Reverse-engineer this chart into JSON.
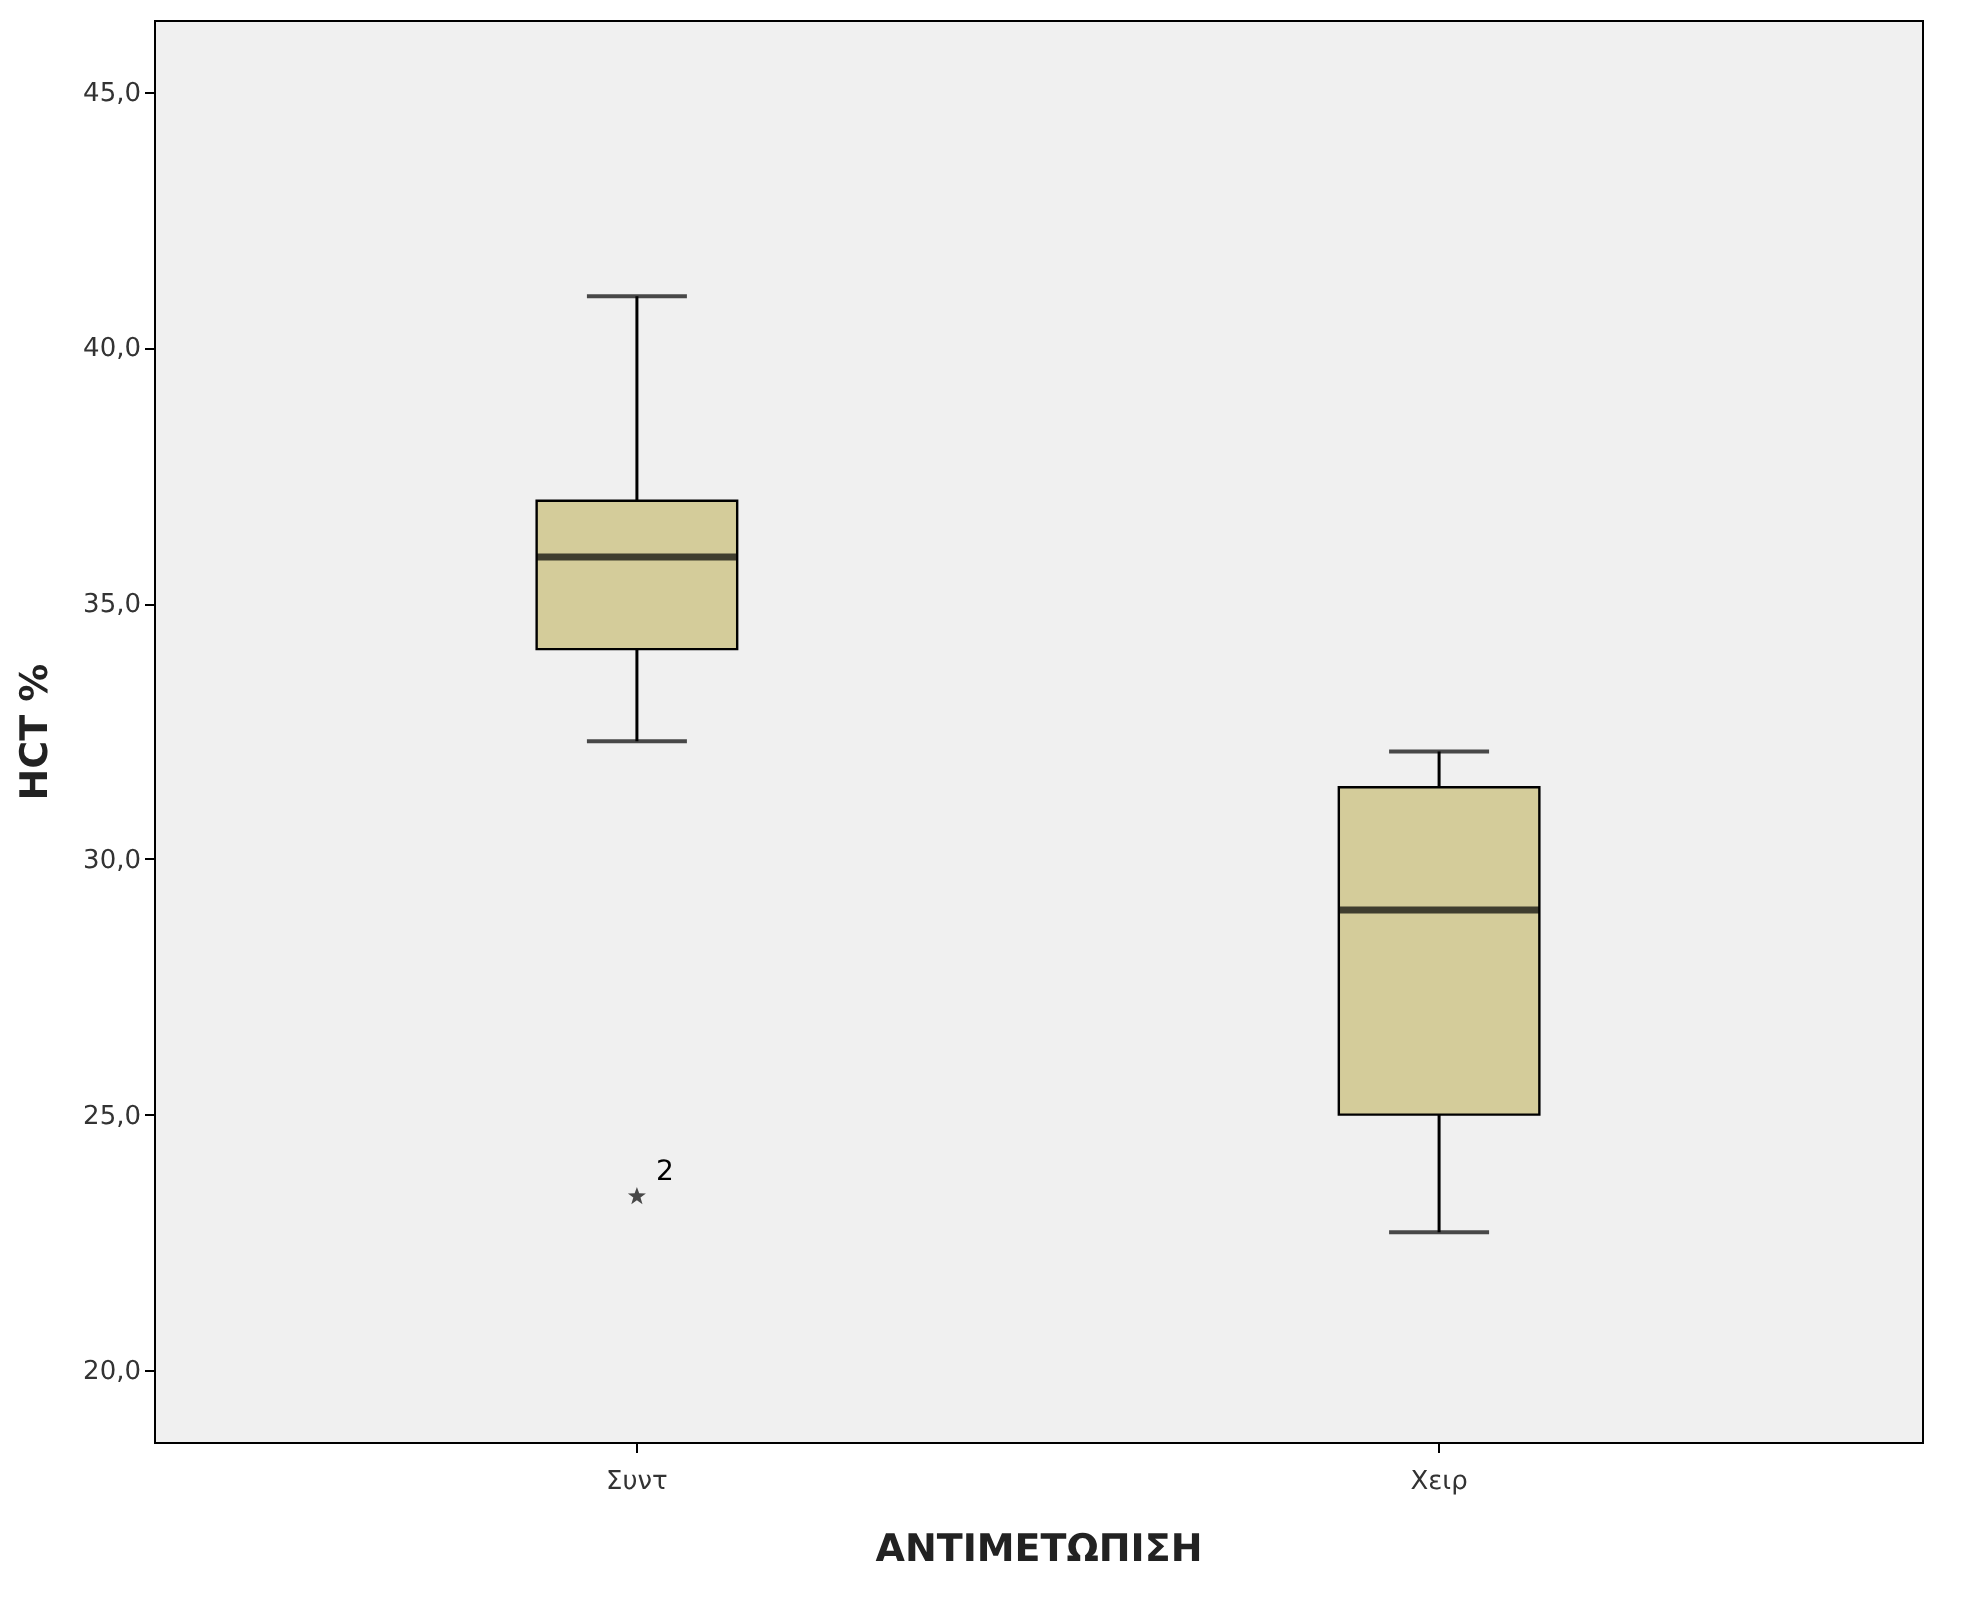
{
  "chart_data": {
    "type": "box",
    "xlabel": "ΑΝΤΙΜΕΤΩΠΙΣΗ",
    "ylabel": "HCT %",
    "categories": [
      "Συντ",
      "Χειρ"
    ],
    "boxes": [
      {
        "low": 32.3,
        "q1": 34.1,
        "median": 35.9,
        "q3": 37.0,
        "high": 41.0,
        "outliers": [
          23.4
        ]
      },
      {
        "low": 22.7,
        "q1": 25.0,
        "median": 29.0,
        "q3": 31.4,
        "high": 32.1
      }
    ],
    "color": "#d4cc9a",
    "marker": "star",
    "ylim": [
      18.6,
      46.4
    ],
    "yticks": [
      {
        "value": 20,
        "label": "20,0"
      },
      {
        "value": 25,
        "label": "25,0"
      },
      {
        "value": 30,
        "label": "30,0"
      },
      {
        "value": 35,
        "label": "35,0"
      },
      {
        "value": 40,
        "label": "40,0"
      },
      {
        "value": 45,
        "label": "45,0"
      }
    ],
    "grid": false,
    "annotations": [
      "2"
    ]
  }
}
